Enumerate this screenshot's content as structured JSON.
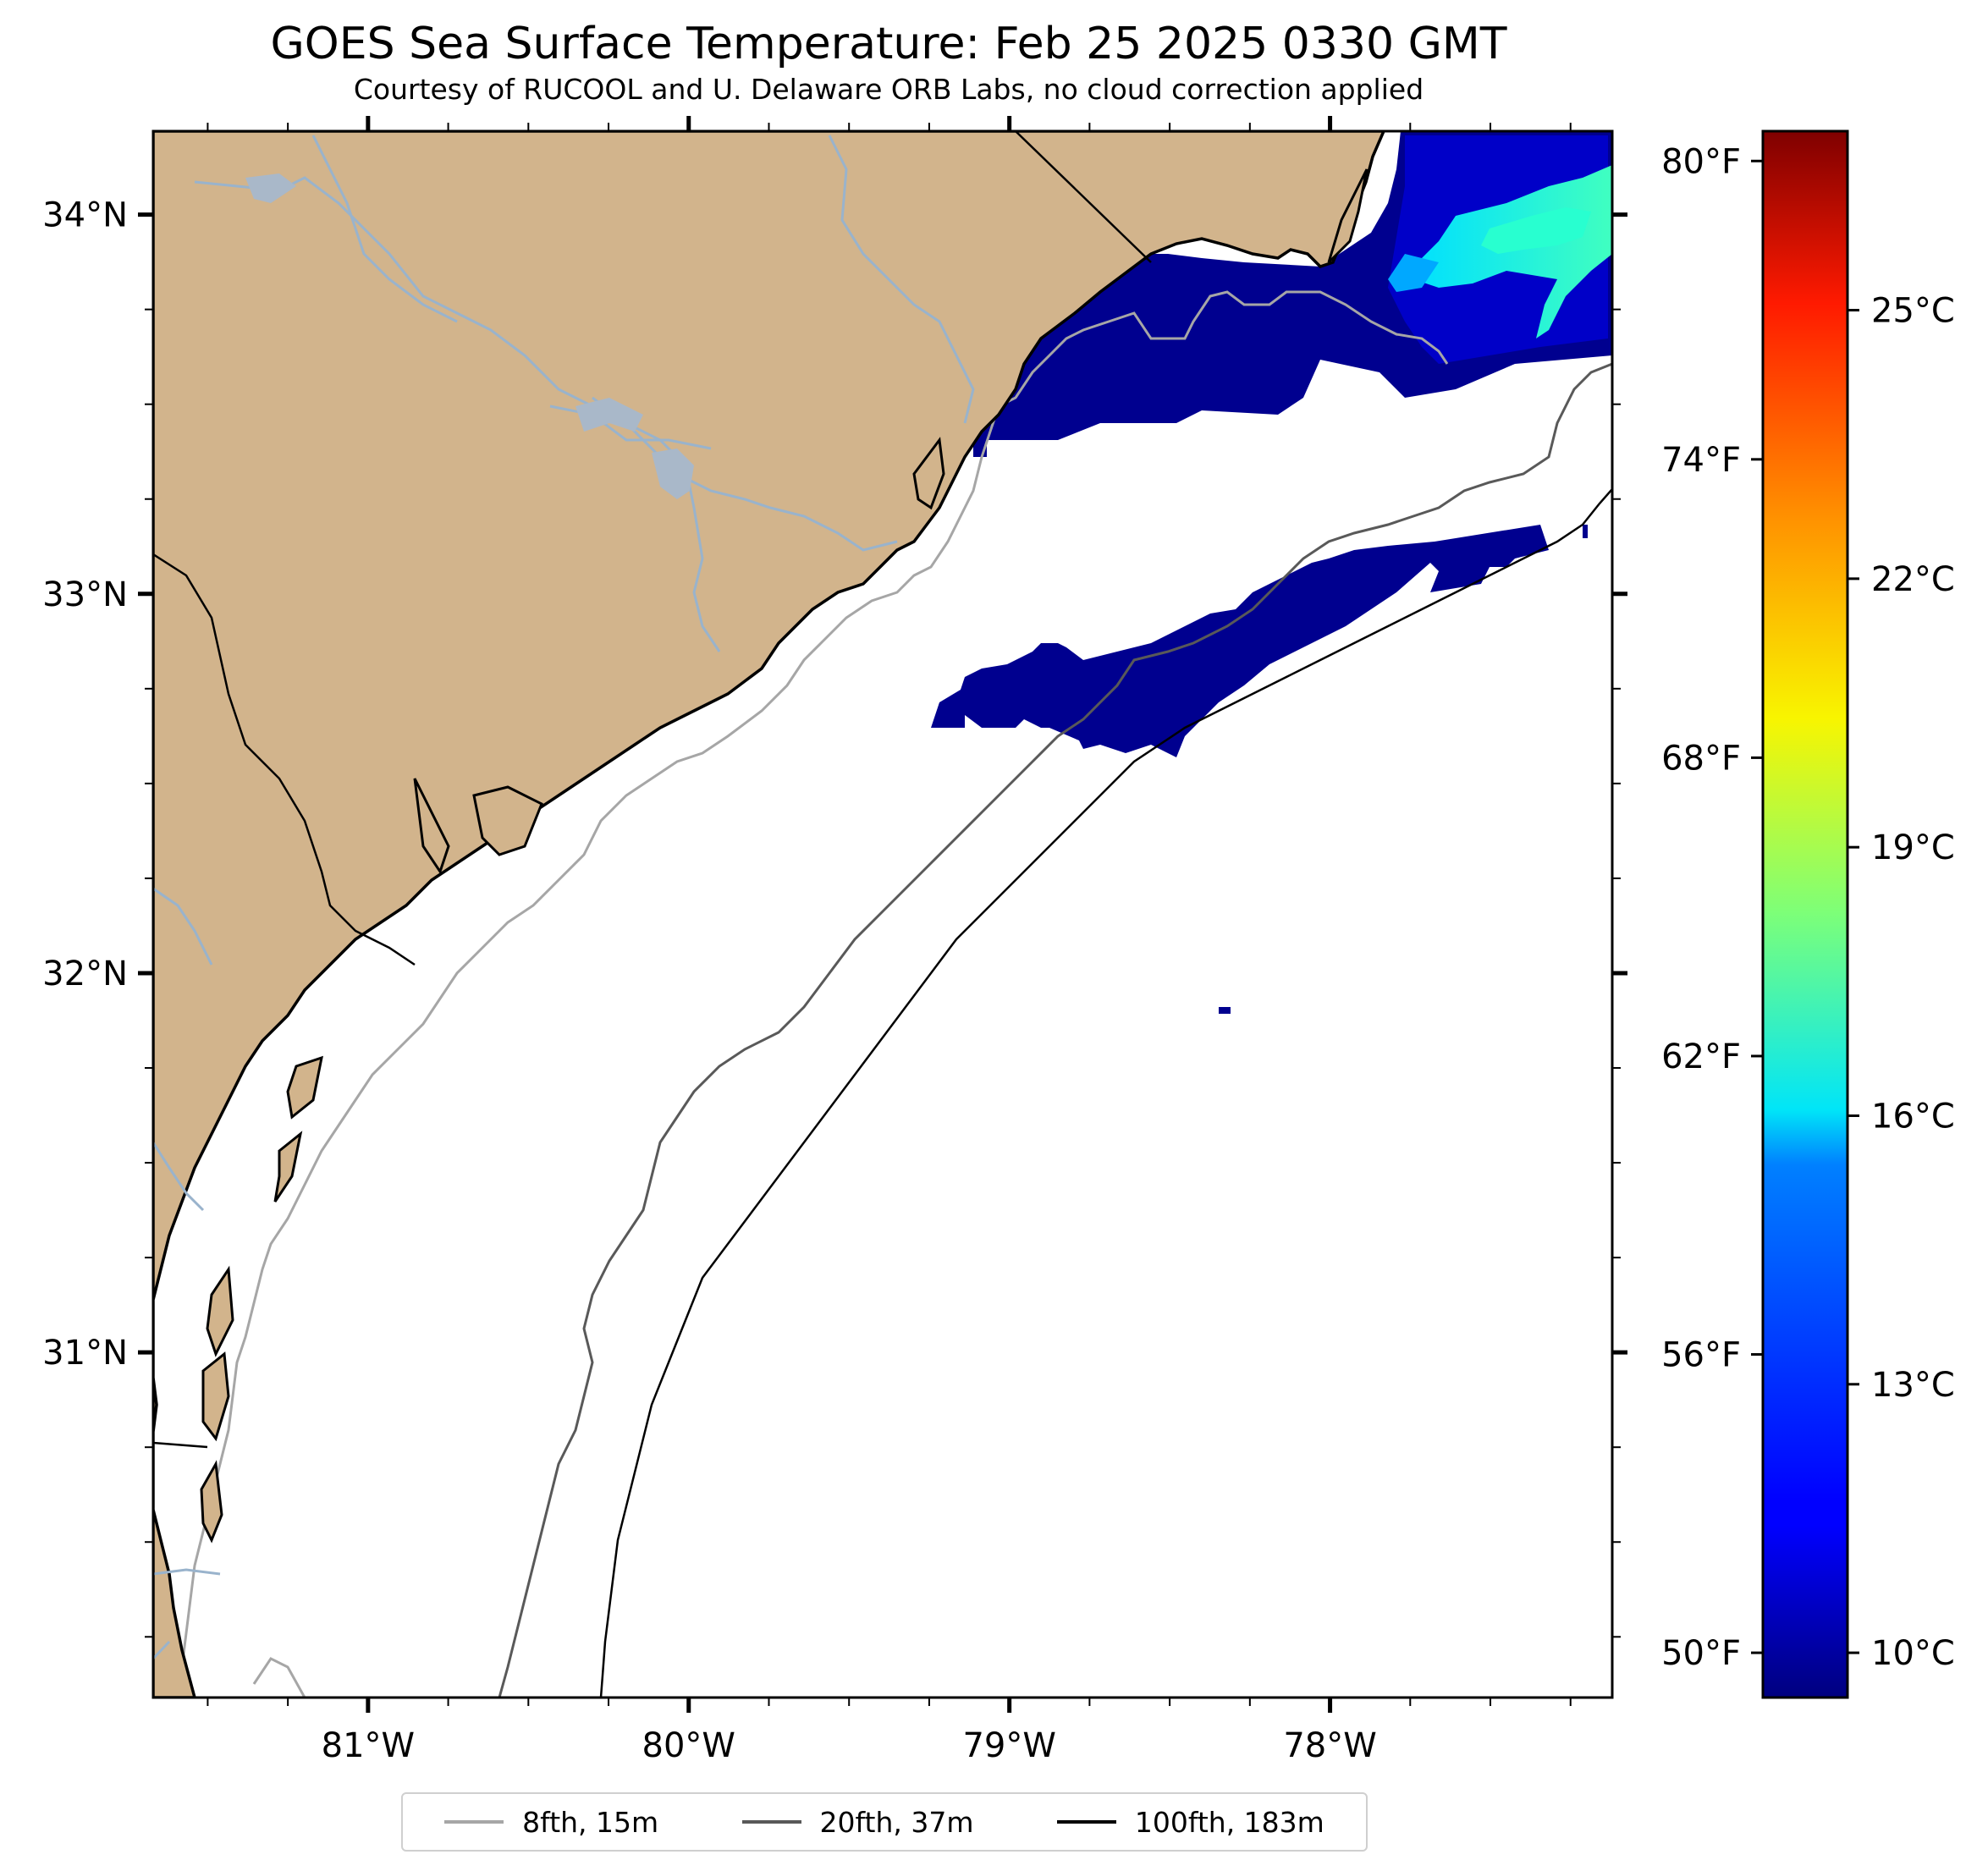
{
  "title": "GOES Sea Surface Temperature: Feb 25 2025 0330 GMT",
  "subtitle": "Courtesy of RUCOOL and U. Delaware ORB Labs, no cloud correction applied",
  "map": {
    "extent": {
      "lon_min": -81.67,
      "lon_max": -77.12,
      "lat_min": 30.09,
      "lat_max": 34.22
    },
    "land_color": "#d2b48c",
    "river_color": "#99b3cc",
    "coast_color": "#000000",
    "lat_ticks": [
      {
        "value": 34,
        "label": "34°N"
      },
      {
        "value": 33,
        "label": "33°N"
      },
      {
        "value": 32,
        "label": "32°N"
      },
      {
        "value": 31,
        "label": "31°N"
      }
    ],
    "lon_ticks": [
      {
        "value": -81,
        "label": "81°W"
      },
      {
        "value": -80,
        "label": "80°W"
      },
      {
        "value": -79,
        "label": "79°W"
      },
      {
        "value": -78,
        "label": "78°W"
      }
    ],
    "minor_tick_step_deg": 0.25
  },
  "colorbar": {
    "colormap": "jet",
    "range_c": [
      9.5,
      27.0
    ],
    "celsius_ticks": [
      {
        "value": 10,
        "label": "10°C"
      },
      {
        "value": 13,
        "label": "13°C"
      },
      {
        "value": 16,
        "label": "16°C"
      },
      {
        "value": 19,
        "label": "19°C"
      },
      {
        "value": 22,
        "label": "22°C"
      },
      {
        "value": 25,
        "label": "25°C"
      }
    ],
    "fahrenheit_ticks": [
      {
        "value": 50,
        "label": "50°F"
      },
      {
        "value": 56,
        "label": "56°F"
      },
      {
        "value": 62,
        "label": "62°F"
      },
      {
        "value": 68,
        "label": "68°F"
      },
      {
        "value": 74,
        "label": "74°F"
      },
      {
        "value": 80,
        "label": "80°F"
      }
    ]
  },
  "legend": {
    "items": [
      {
        "label": "8fth, 15m",
        "color": "#a6a6a6"
      },
      {
        "label": "20fth, 37m",
        "color": "#595959"
      },
      {
        "label": "100fth, 183m",
        "color": "#000000"
      }
    ]
  }
}
